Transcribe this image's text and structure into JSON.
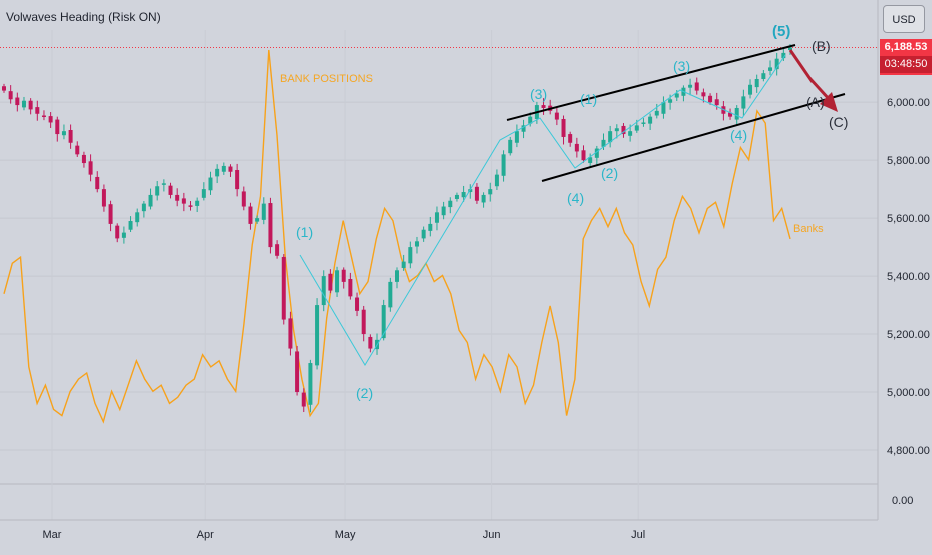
{
  "header": {
    "title": "Volwaves Heading (Risk ON)",
    "currency": "USD"
  },
  "price_tag": {
    "last": "6,188.53",
    "countdown": "03:48:50"
  },
  "colors": {
    "background": "#d1d4dc",
    "up_candle": "#22ab94",
    "down_candle": "#c2185b",
    "banks_line": "#f7a21b",
    "wave_line": "#3bc8d8",
    "channel": "#000000",
    "arrow": "#b22234",
    "price_line": "#f23645"
  },
  "chart_data": {
    "type": "candlestick",
    "title": "Volwaves Heading (Risk ON)",
    "y_axis": {
      "range": [
        4650,
        6300
      ],
      "ticks": [
        "6,000.00",
        "5,800.00",
        "5,600.00",
        "5,400.00",
        "5,200.00",
        "5,000.00",
        "4,800.00"
      ],
      "tick_values": [
        6000,
        5800,
        5600,
        5400,
        5200,
        5000,
        4800
      ],
      "secondary_tick": "0.00"
    },
    "x_axis": {
      "ticks": [
        "Mar",
        "Apr",
        "May",
        "Jun",
        "Jul"
      ],
      "tick_index": [
        0,
        23,
        44,
        66,
        88
      ]
    },
    "candles_close": [
      6040,
      6010,
      5990,
      6005,
      5975,
      5960,
      5950,
      5930,
      5890,
      5900,
      5860,
      5820,
      5790,
      5750,
      5700,
      5640,
      5580,
      5530,
      5550,
      5590,
      5620,
      5650,
      5680,
      5710,
      5720,
      5680,
      5660,
      5650,
      5640,
      5660,
      5700,
      5740,
      5770,
      5780,
      5760,
      5700,
      5640,
      5580,
      5600,
      5650,
      5500,
      5470,
      5250,
      5150,
      5000,
      4950,
      5100,
      5300,
      5400,
      5350,
      5420,
      5380,
      5330,
      5280,
      5200,
      5150,
      5180,
      5300,
      5380,
      5420,
      5450,
      5500,
      5520,
      5560,
      5580,
      5620,
      5640,
      5660,
      5680,
      5690,
      5700,
      5660,
      5680,
      5700,
      5750,
      5820,
      5870,
      5900,
      5920,
      5950,
      5990,
      5980,
      5970,
      5940,
      5880,
      5860,
      5830,
      5800,
      5810,
      5840,
      5870,
      5900,
      5910,
      5890,
      5900,
      5920,
      5930,
      5950,
      5970,
      6000,
      6010,
      6030,
      6050,
      6060,
      6040,
      6020,
      6000,
      5990,
      5960,
      5950,
      5980,
      6020,
      6060,
      6080,
      6100,
      6120,
      6150,
      6170,
      6188.53
    ],
    "banks_series": [
      2.4,
      2.9,
      3.0,
      1.2,
      0.6,
      0.9,
      0.5,
      0.4,
      0.8,
      1.0,
      1.1,
      0.6,
      0.3,
      0.8,
      0.5,
      0.9,
      1.3,
      1.0,
      0.8,
      0.9,
      0.6,
      0.7,
      0.9,
      1.0,
      1.4,
      1.2,
      1.3,
      1.0,
      0.8,
      1.9,
      3.2,
      4.0,
      6.4,
      5.0,
      3.0,
      1.8,
      1.0,
      0.4,
      0.6,
      2.0,
      2.9,
      3.6,
      3.0,
      2.4,
      2.6,
      3.3,
      3.8,
      3.6,
      3.0,
      2.6,
      2.7,
      2.9,
      2.6,
      2.7,
      2.4,
      1.8,
      1.6,
      1.0,
      1.4,
      1.2,
      0.8,
      1.4,
      1.2,
      0.6,
      0.9,
      1.6,
      2.2,
      1.6,
      0.4,
      1.0,
      3.3,
      3.6,
      3.8,
      3.5,
      3.8,
      3.4,
      3.2,
      2.6,
      2.2,
      2.8,
      3.0,
      3.6,
      4.0,
      3.8,
      3.4,
      3.8,
      3.9,
      3.5,
      4.2,
      4.8,
      4.6,
      5.4,
      5.2,
      3.6,
      3.8,
      3.3
    ],
    "annotations": {
      "bank_positions_label": "BANK POSITIONS",
      "banks_label": "Banks",
      "waves": [
        {
          "label": "(1)",
          "style": "cyan"
        },
        {
          "label": "(2)",
          "style": "cyan"
        },
        {
          "label": "(3)",
          "style": "cyan"
        },
        {
          "label": "(1)",
          "style": "cyan"
        },
        {
          "label": "(4)",
          "style": "cyan"
        },
        {
          "label": "(2)",
          "style": "cyan"
        },
        {
          "label": "(3)",
          "style": "cyan"
        },
        {
          "label": "(4)",
          "style": "cyan"
        },
        {
          "label": "(5)",
          "style": "cyan-bold"
        },
        {
          "label": "(B)",
          "style": "dark"
        },
        {
          "label": "(A)",
          "style": "dark"
        },
        {
          "label": "(C)",
          "style": "dark"
        }
      ]
    }
  }
}
